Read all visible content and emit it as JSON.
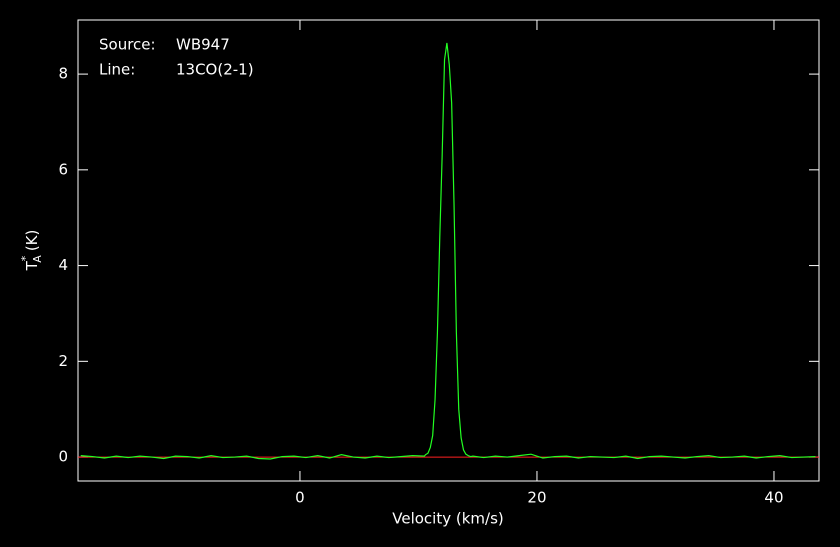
{
  "chart_data": {
    "type": "line",
    "annotations": [
      [
        "Source:",
        "WB947"
      ],
      [
        "Line:",
        "13CO(2-1)"
      ]
    ],
    "xlabel": "Velocity (km/s)",
    "ylabel": {
      "symbol": "T",
      "superscript": "*",
      "subscript": "A",
      "unit": "(K)"
    },
    "xlim": [
      -18.73,
      43.8
    ],
    "ylim": [
      -0.5,
      9.13
    ],
    "xticks": [
      0,
      20,
      40
    ],
    "yticks": [
      0,
      2,
      4,
      6,
      8
    ],
    "baseline": 0,
    "baseline_color": "#ff2020",
    "series": [
      {
        "color": "#22ff22",
        "x": [
          -18.5,
          -17.5,
          -16.5,
          -15.5,
          -14.5,
          -13.5,
          -12.5,
          -11.5,
          -10.5,
          -9.5,
          -8.5,
          -7.5,
          -6.5,
          -5.5,
          -4.5,
          -3.5,
          -2.5,
          -1.5,
          -0.5,
          0.5,
          1.5,
          2.5,
          3.5,
          4.5,
          5.5,
          6.5,
          7.5,
          8.5,
          9.5,
          10.5,
          10.6,
          10.8,
          11.0,
          11.2,
          11.4,
          11.6,
          11.8,
          12.0,
          12.2,
          12.4,
          12.6,
          12.8,
          13.0,
          13.2,
          13.4,
          13.6,
          13.8,
          14.0,
          14.2,
          14.4,
          14.6,
          15.5,
          16.5,
          17.5,
          18.5,
          19.5,
          20.5,
          21.5,
          22.5,
          23.5,
          24.5,
          25.5,
          26.5,
          27.5,
          28.5,
          29.5,
          30.5,
          31.5,
          32.5,
          33.5,
          34.5,
          35.5,
          36.5,
          37.5,
          38.5,
          39.5,
          40.5,
          41.5,
          42.5,
          43.5
        ],
        "values": [
          0.03,
          0.01,
          -0.02,
          0.02,
          -0.01,
          0.02,
          0.0,
          -0.03,
          0.02,
          0.01,
          -0.02,
          0.03,
          -0.01,
          0.0,
          0.02,
          -0.03,
          -0.04,
          0.01,
          0.02,
          -0.01,
          0.03,
          -0.02,
          0.05,
          0.0,
          -0.02,
          0.02,
          -0.01,
          0.01,
          0.03,
          0.02,
          0.05,
          0.08,
          0.2,
          0.45,
          1.2,
          2.6,
          4.6,
          6.3,
          8.3,
          8.65,
          8.2,
          7.4,
          5.3,
          2.6,
          1.0,
          0.4,
          0.15,
          0.06,
          0.03,
          0.01,
          0.02,
          -0.01,
          0.02,
          0.0,
          0.03,
          0.06,
          -0.02,
          0.01,
          0.02,
          -0.02,
          0.01,
          0.0,
          -0.01,
          0.02,
          -0.03,
          0.01,
          0.02,
          0.0,
          -0.02,
          0.01,
          0.03,
          -0.01,
          0.0,
          0.02,
          -0.02,
          0.01,
          0.03,
          -0.01,
          0.0,
          0.01
        ]
      }
    ]
  }
}
